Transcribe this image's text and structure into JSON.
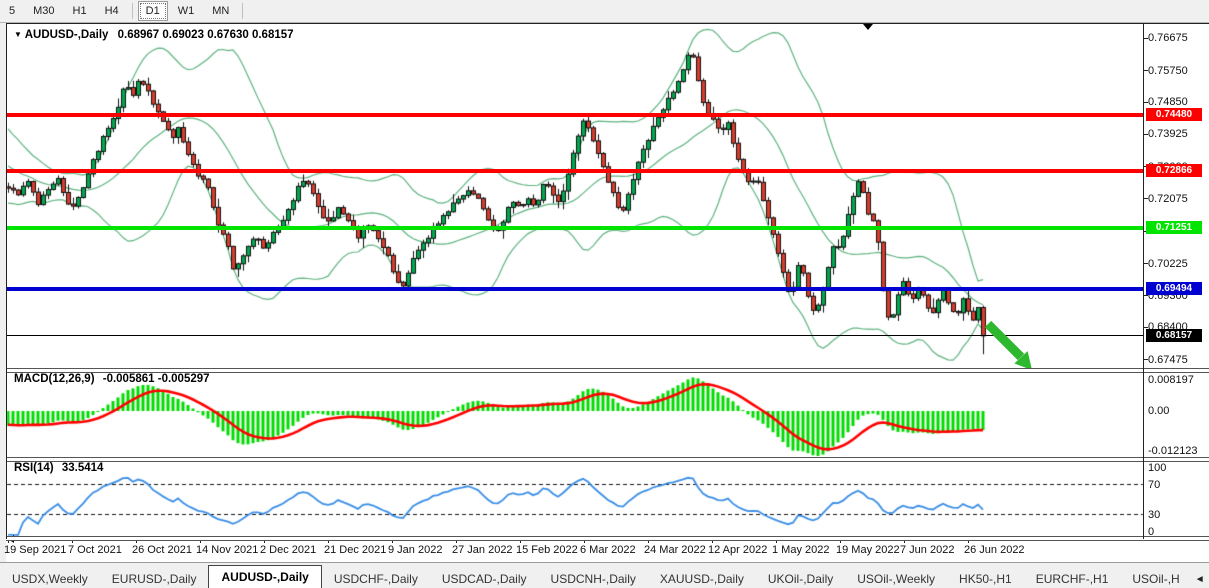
{
  "toolbar": {
    "timeframes": [
      "5",
      "M30",
      "H1",
      "H4",
      "D1",
      "W1",
      "MN"
    ],
    "active": "D1"
  },
  "chart": {
    "title": {
      "dropdown_glyph": "▼",
      "symbol": "AUDUSD-,Daily",
      "open": "0.68967",
      "high": "0.69023",
      "low": "0.67630",
      "close": "0.68157"
    }
  },
  "indicators": {
    "macd": {
      "label": "MACD(12,26,9)",
      "value_main": "-0.005861",
      "value_signal": "-0.005297",
      "axis_max": "0.008197",
      "axis_zero": "0.00",
      "axis_min": "-0.012123"
    },
    "rsi": {
      "label": "RSI(14)",
      "value": "33.5414",
      "axis": [
        "100",
        "70",
        "30",
        "0"
      ],
      "levels": [
        70,
        30
      ]
    }
  },
  "chart_data": {
    "type": "candlestick",
    "symbol": "AUDUSD",
    "timeframe": "Daily",
    "title": "AUDUSD-,Daily",
    "last_candle": {
      "open": 0.68967,
      "high": 0.69023,
      "low": 0.6763,
      "close": 0.68157
    },
    "price_axis": {
      "top_price": 0.771,
      "bottom_price": 0.6725,
      "ticks": [
        "0.76675",
        "0.75750",
        "0.74850",
        "0.73925",
        "0.73000",
        "0.72075",
        "0.71150",
        "0.70225",
        "0.69300",
        "0.68400",
        "0.67475"
      ]
    },
    "hlines": [
      {
        "price": 0.7448,
        "label": "0.74480",
        "color": "#ff0000",
        "width": 4
      },
      {
        "price": 0.72866,
        "label": "0.72866",
        "color": "#ff0000",
        "width": 4
      },
      {
        "price": 0.71251,
        "label": "0.71251",
        "color": "#00e400",
        "width": 4
      },
      {
        "price": 0.69494,
        "label": "0.69494",
        "color": "#0000d0",
        "width": 4
      },
      {
        "price": 0.68157,
        "label": "0.68157",
        "color": "#000000",
        "width": 1
      }
    ],
    "date_ticks": [
      "19 Sep 2021",
      "7 Oct 2021",
      "26 Oct 2021",
      "14 Nov 2021",
      "2 Dec 2021",
      "21 Dec 2021",
      "9 Jan 2022",
      "27 Jan 2022",
      "15 Feb 2022",
      "6 Mar 2022",
      "24 Mar 2022",
      "12 Apr 2022",
      "1 May 2022",
      "19 May 2022",
      "7 Jun 2022",
      "26 Jun 2022"
    ],
    "price_path_anchors": [
      [
        -92,
        0.742
      ],
      [
        -60,
        0.7335
      ],
      [
        -30,
        0.7265
      ],
      [
        -5,
        0.725
      ],
      [
        8,
        0.7245
      ],
      [
        18,
        0.7225
      ],
      [
        28,
        0.7258
      ],
      [
        38,
        0.7186
      ],
      [
        48,
        0.724
      ],
      [
        58,
        0.7272
      ],
      [
        66,
        0.7205
      ],
      [
        72,
        0.7178
      ],
      [
        80,
        0.722
      ],
      [
        88,
        0.728
      ],
      [
        98,
        0.735
      ],
      [
        108,
        0.741
      ],
      [
        118,
        0.7472
      ],
      [
        126,
        0.7545
      ],
      [
        132,
        0.7496
      ],
      [
        140,
        0.7552
      ],
      [
        148,
        0.751
      ],
      [
        156,
        0.7468
      ],
      [
        164,
        0.7428
      ],
      [
        172,
        0.7382
      ],
      [
        178,
        0.7412
      ],
      [
        188,
        0.7335
      ],
      [
        198,
        0.7278
      ],
      [
        208,
        0.7245
      ],
      [
        218,
        0.7135
      ],
      [
        226,
        0.709
      ],
      [
        234,
        0.6998
      ],
      [
        241,
        0.7028
      ],
      [
        248,
        0.7078
      ],
      [
        256,
        0.71
      ],
      [
        264,
        0.7068
      ],
      [
        274,
        0.7118
      ],
      [
        284,
        0.7148
      ],
      [
        294,
        0.7215
      ],
      [
        302,
        0.7268
      ],
      [
        310,
        0.7242
      ],
      [
        318,
        0.7182
      ],
      [
        328,
        0.7138
      ],
      [
        338,
        0.718
      ],
      [
        348,
        0.7152
      ],
      [
        358,
        0.7102
      ],
      [
        368,
        0.7135
      ],
      [
        378,
        0.71
      ],
      [
        388,
        0.7042
      ],
      [
        396,
        0.6982
      ],
      [
        403,
        0.6956
      ],
      [
        411,
        0.702
      ],
      [
        419,
        0.7068
      ],
      [
        429,
        0.7105
      ],
      [
        439,
        0.7145
      ],
      [
        449,
        0.718
      ],
      [
        459,
        0.7205
      ],
      [
        469,
        0.7238
      ],
      [
        479,
        0.721
      ],
      [
        487,
        0.7148
      ],
      [
        495,
        0.7102
      ],
      [
        503,
        0.7148
      ],
      [
        511,
        0.7195
      ],
      [
        519,
        0.718
      ],
      [
        527,
        0.7212
      ],
      [
        535,
        0.718
      ],
      [
        543,
        0.7255
      ],
      [
        551,
        0.724
      ],
      [
        557,
        0.7195
      ],
      [
        563,
        0.7235
      ],
      [
        569,
        0.729
      ],
      [
        576,
        0.7365
      ],
      [
        584,
        0.7435
      ],
      [
        592,
        0.7388
      ],
      [
        600,
        0.733
      ],
      [
        608,
        0.7262
      ],
      [
        616,
        0.7196
      ],
      [
        622,
        0.7172
      ],
      [
        630,
        0.7232
      ],
      [
        638,
        0.7308
      ],
      [
        646,
        0.7368
      ],
      [
        654,
        0.7415
      ],
      [
        662,
        0.746
      ],
      [
        670,
        0.75
      ],
      [
        678,
        0.754
      ],
      [
        686,
        0.761
      ],
      [
        691,
        0.7648
      ],
      [
        697,
        0.756
      ],
      [
        703,
        0.7482
      ],
      [
        709,
        0.7446
      ],
      [
        715,
        0.7432
      ],
      [
        721,
        0.7392
      ],
      [
        727,
        0.7438
      ],
      [
        733,
        0.7372
      ],
      [
        739,
        0.7305
      ],
      [
        745,
        0.7272
      ],
      [
        751,
        0.7252
      ],
      [
        757,
        0.7264
      ],
      [
        763,
        0.7205
      ],
      [
        769,
        0.7142
      ],
      [
        775,
        0.7082
      ],
      [
        781,
        0.7012
      ],
      [
        787,
        0.6952
      ],
      [
        791,
        0.6925
      ],
      [
        795,
        0.6988
      ],
      [
        799,
        0.7035
      ],
      [
        803,
        0.6992
      ],
      [
        807,
        0.6945
      ],
      [
        811,
        0.6902
      ],
      [
        815,
        0.6862
      ],
      [
        819,
        0.6912
      ],
      [
        823,
        0.6958
      ],
      [
        827,
        0.7008
      ],
      [
        831,
        0.7048
      ],
      [
        835,
        0.7088
      ],
      [
        839,
        0.7062
      ],
      [
        843,
        0.7098
      ],
      [
        847,
        0.7148
      ],
      [
        851,
        0.7198
      ],
      [
        855,
        0.7242
      ],
      [
        859,
        0.7268
      ],
      [
        863,
        0.7232
      ],
      [
        867,
        0.7172
      ],
      [
        871,
        0.7132
      ],
      [
        875,
        0.7162
      ],
      [
        879,
        0.7062
      ],
      [
        883,
        0.6952
      ],
      [
        887,
        0.6882
      ],
      [
        891,
        0.6856
      ],
      [
        895,
        0.69
      ],
      [
        899,
        0.6948
      ],
      [
        903,
        0.6976
      ],
      [
        907,
        0.6946
      ],
      [
        911,
        0.6916
      ],
      [
        915,
        0.6936
      ],
      [
        919,
        0.6958
      ],
      [
        923,
        0.6934
      ],
      [
        927,
        0.6904
      ],
      [
        931,
        0.6874
      ],
      [
        935,
        0.6898
      ],
      [
        939,
        0.6924
      ],
      [
        943,
        0.6944
      ],
      [
        947,
        0.6918
      ],
      [
        951,
        0.6892
      ],
      [
        955,
        0.6868
      ],
      [
        959,
        0.6894
      ],
      [
        963,
        0.6918
      ],
      [
        967,
        0.6894
      ],
      [
        971,
        0.6868
      ],
      [
        975,
        0.686
      ],
      [
        979,
        0.6897
      ],
      [
        983,
        0.6816
      ]
    ],
    "colors": {
      "up": "#00a94f",
      "down": "#da3b2b",
      "outline": "#111111",
      "bollinger": "#5fb380",
      "macd_hist": "#00dc00",
      "macd_signal": "#ff0000",
      "rsi": "#3a8ee6",
      "arrow": "#2db82d"
    }
  },
  "tabs": {
    "items": [
      "USDX,Weekly",
      "EURUSD-,Daily",
      "AUDUSD-,Daily",
      "USDCHF-,Daily",
      "USDCAD-,Daily",
      "USDCNH-,Daily",
      "XAUUSD-,Daily",
      "UKOil-,Daily",
      "USOil-,Weekly",
      "HK50-,H1",
      "EURCHF-,H1",
      "USOil-,H"
    ],
    "active": "AUDUSD-,Daily",
    "scroll_left_glyph": "◄",
    "scroll_right_glyph": "►"
  }
}
